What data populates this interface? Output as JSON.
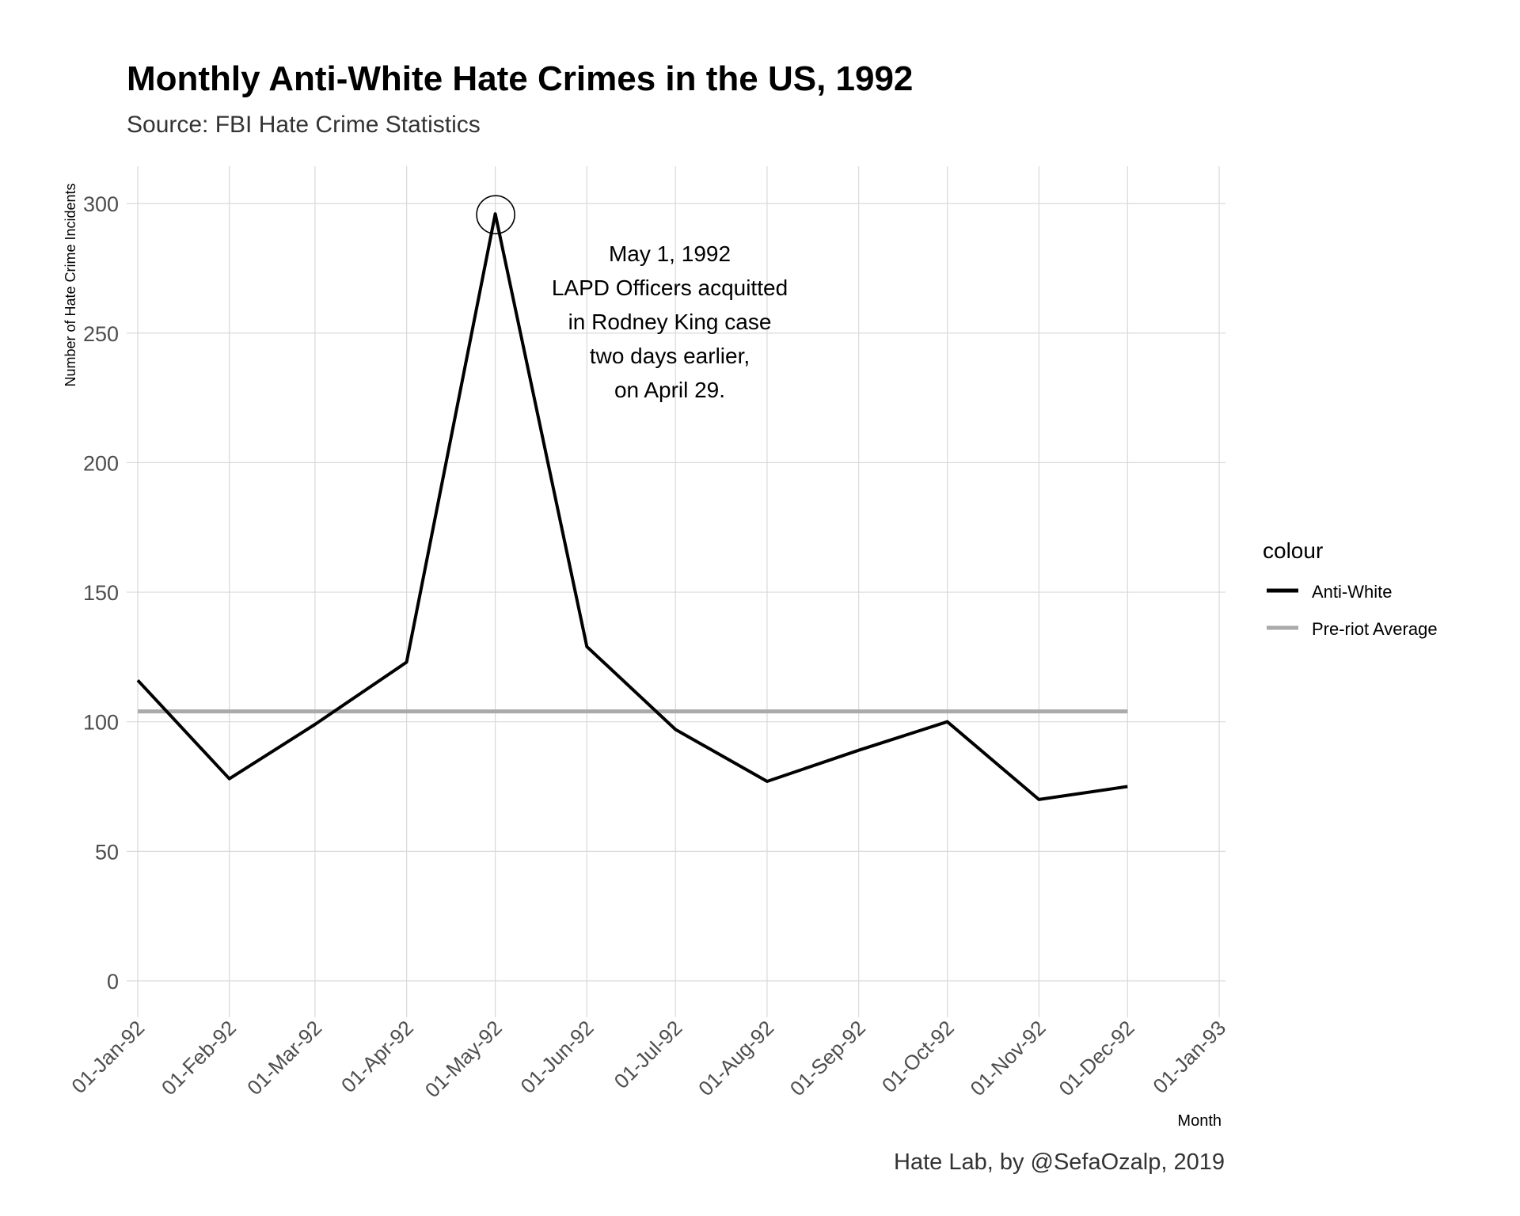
{
  "chart_data": {
    "type": "line",
    "title": "Monthly Anti-White Hate Crimes in the US, 1992",
    "subtitle": "Source: FBI Hate Crime Statistics",
    "xlabel": "Month",
    "ylabel": "Number of Hate Crime Incidents",
    "caption": "Hate Lab, by @SefaOzalp, 2019",
    "x_tick_labels": [
      "01-Jan-92",
      "01-Feb-92",
      "01-Mar-92",
      "01-Apr-92",
      "01-May-92",
      "01-Jun-92",
      "01-Jul-92",
      "01-Aug-92",
      "01-Sep-92",
      "01-Oct-92",
      "01-Nov-92",
      "01-Dec-92",
      "01-Jan-93"
    ],
    "y_ticks": [
      0,
      50,
      100,
      150,
      200,
      250,
      300
    ],
    "ylim": [
      -13,
      315
    ],
    "grid": true,
    "legend_position": "right",
    "legend_title": "colour",
    "series": [
      {
        "name": "Anti-White",
        "color": "#000000",
        "x": [
          "1992-01-01",
          "1992-02-01",
          "1992-03-01",
          "1992-04-01",
          "1992-05-01",
          "1992-06-01",
          "1992-07-01",
          "1992-08-01",
          "1992-09-01",
          "1992-10-01",
          "1992-11-01",
          "1992-12-01"
        ],
        "values": [
          116,
          78,
          99,
          123,
          296,
          129,
          97,
          77,
          89,
          100,
          70,
          75
        ]
      },
      {
        "name": "Pre-riot Average",
        "color": "#aaaaaa",
        "x": [
          "1992-01-01",
          "1992-12-01"
        ],
        "values": [
          104,
          104
        ]
      }
    ],
    "annotation": {
      "lines": [
        "May 1, 1992",
        "LAPD Officers acquitted",
        "in Rodney King case",
        "two days earlier,",
        "on April 29."
      ],
      "highlight_x": "1992-05-01",
      "highlight_y": 296
    }
  }
}
